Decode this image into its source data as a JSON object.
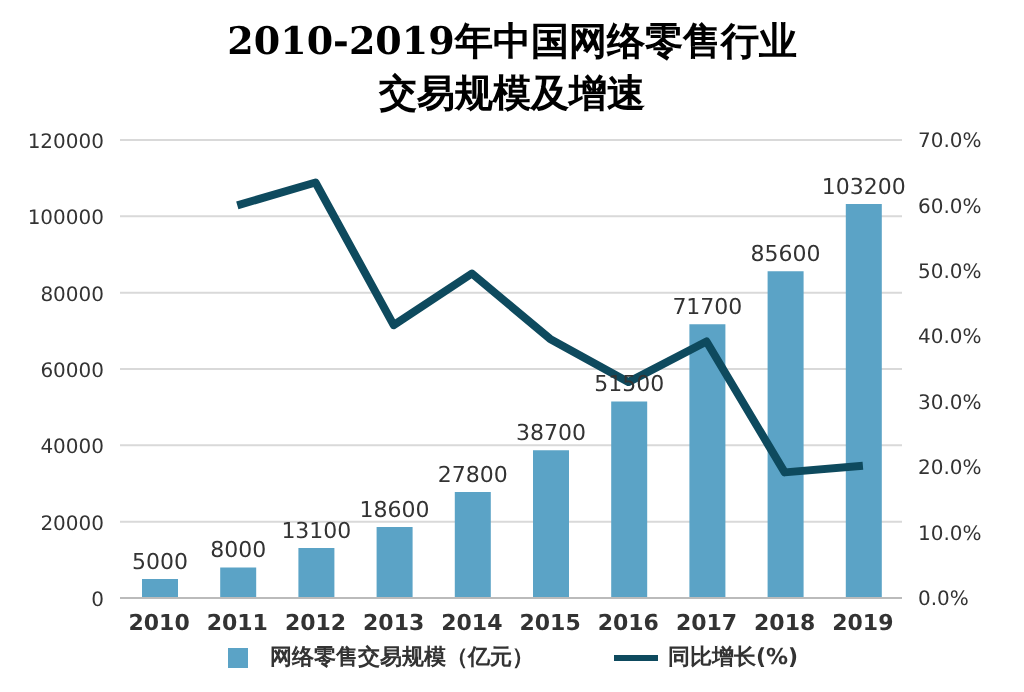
{
  "chart_data": {
    "type": "bar",
    "title": "2010-2019年中国网络零售行业交易规模及增速",
    "categories": [
      "2010",
      "2011",
      "2012",
      "2013",
      "2014",
      "2015",
      "2016",
      "2017",
      "2018",
      "2019"
    ],
    "series": [
      {
        "name": "网络零售交易规模（亿元）",
        "color": "#5ba3c6",
        "values": [
          5000,
          8000,
          13100,
          18600,
          27800,
          38700,
          51500,
          71700,
          85600,
          103200
        ],
        "value_labels": [
          "5000",
          "8000",
          "13100",
          "18600",
          "27800",
          "38700",
          "51500",
          "71700",
          "85600",
          "103200"
        ]
      },
      {
        "name": "同比增长(%)",
        "type": "line",
        "axis": "y2",
        "color": "#0e4a5e",
        "values": [
          null,
          60,
          63.5,
          41.7,
          49.6,
          39.6,
          33,
          39.2,
          19.2,
          20.2
        ]
      }
    ],
    "ylim": [
      0,
      120000
    ],
    "yticks": [
      0,
      20000,
      40000,
      60000,
      80000,
      100000,
      120000
    ],
    "y2lim": [
      0,
      70
    ],
    "y2ticks": [
      {
        "value": 0,
        "label": "0.0%"
      },
      {
        "value": 10,
        "label": "10.0%"
      },
      {
        "value": 20,
        "label": "20.0%"
      },
      {
        "value": 30,
        "label": "30.0%"
      },
      {
        "value": 40,
        "label": "40.0%"
      },
      {
        "value": 50,
        "label": "50.0%"
      },
      {
        "value": 60,
        "label": "60.0%"
      },
      {
        "value": 70,
        "label": "70.0%"
      }
    ],
    "grid": "y",
    "legend": "bottom",
    "marker": "none",
    "line_style": "solid"
  }
}
